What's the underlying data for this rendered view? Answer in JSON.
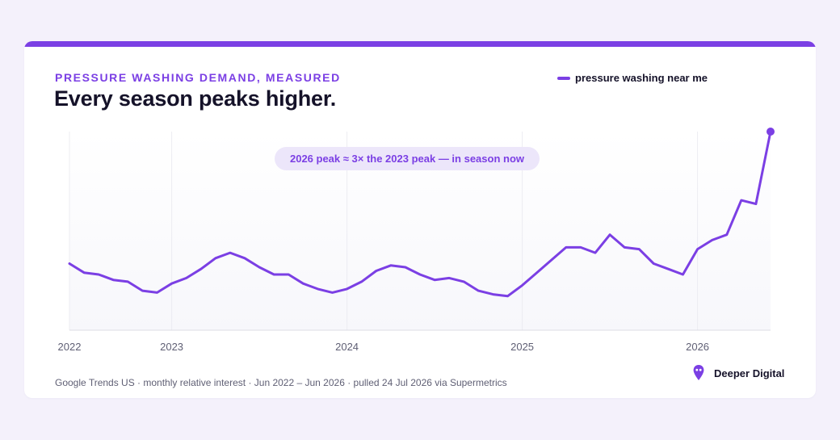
{
  "header": {
    "eyebrow": "PRESSURE WASHING DEMAND, MEASURED",
    "title": "Every season peaks higher."
  },
  "legend": {
    "label": "pressure washing near me",
    "color": "#7b3fe4"
  },
  "annotation": {
    "text": "2026 peak ≈ 3× the 2023 peak — in season now"
  },
  "footer": {
    "note": "Google Trends US · monthly relative interest · Jun 2022 – Jun 2026 · pulled 24 Jul 2026 via Supermetrics",
    "brand": "Deeper Digital"
  },
  "colors": {
    "accent": "#7b3fe4",
    "ink": "#151229",
    "muted": "#5f5f74"
  },
  "chart_data": {
    "type": "line",
    "x": [
      "2022-06",
      "2022-07",
      "2022-08",
      "2022-09",
      "2022-10",
      "2022-11",
      "2022-12",
      "2023-01",
      "2023-02",
      "2023-03",
      "2023-04",
      "2023-05",
      "2023-06",
      "2023-07",
      "2023-08",
      "2023-09",
      "2023-10",
      "2023-11",
      "2023-12",
      "2024-01",
      "2024-02",
      "2024-03",
      "2024-04",
      "2024-05",
      "2024-06",
      "2024-07",
      "2024-08",
      "2024-09",
      "2024-10",
      "2024-11",
      "2024-12",
      "2025-01",
      "2025-02",
      "2025-03",
      "2025-04",
      "2025-05",
      "2025-06",
      "2025-07",
      "2025-08",
      "2025-09",
      "2025-10",
      "2025-11",
      "2025-12",
      "2026-01",
      "2026-02",
      "2026-03",
      "2026-04",
      "2026-05",
      "2026-06"
    ],
    "series": [
      {
        "name": "pressure washing near me",
        "values": [
          27,
          22,
          21,
          18,
          17,
          12,
          11,
          16,
          19,
          24,
          30,
          33,
          30,
          25,
          21,
          21,
          16,
          13,
          11,
          13,
          17,
          23,
          26,
          25,
          21,
          18,
          19,
          17,
          12,
          10,
          9,
          15,
          22,
          29,
          36,
          36,
          33,
          43,
          36,
          35,
          27,
          24,
          21,
          35,
          40,
          43,
          62,
          60,
          100
        ]
      }
    ],
    "xticks": [
      "2022",
      "2023",
      "2024",
      "2025",
      "2026"
    ],
    "xlabel": "",
    "ylabel": "",
    "ylim": [
      0,
      100
    ],
    "grid": "vertical lines at year ticks",
    "legend_position": "top-right",
    "marker": "dot on last point"
  }
}
